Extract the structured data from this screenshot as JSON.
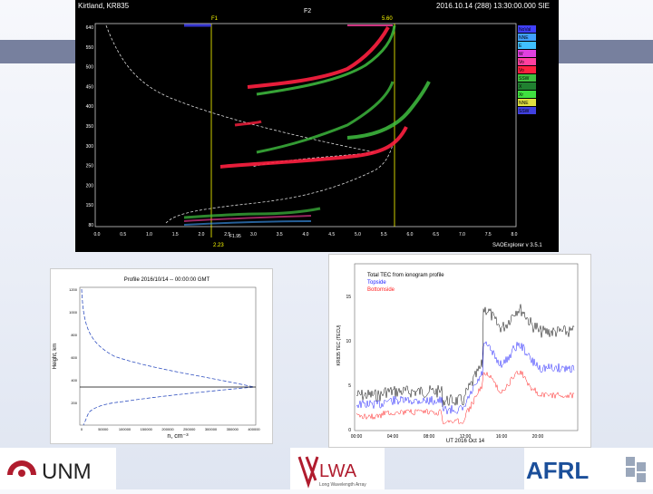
{
  "slide": {
    "colors": {
      "band": "#8d97c4",
      "band_side": "#77809e",
      "background": "#eef1f8"
    }
  },
  "ionogram": {
    "header_left": "Kirtland, KR835",
    "header_mid": "F2",
    "header_right": "2016.10.14 (288) 13:30:00.000 SIE",
    "footer_right": "SAOExplorer v 3.5.1",
    "marker_top_left": "F1",
    "marker_top_right": "5.60",
    "marker_bottom": "2.23",
    "marker_label": "F1.95",
    "y_ticks": [
      "640",
      "550",
      "500",
      "450",
      "400",
      "350",
      "300",
      "250",
      "200",
      "150",
      "80"
    ],
    "x_ticks": [
      "0.0",
      "0.5",
      "1.0",
      "1.5",
      "2.0",
      "2.5",
      "3.0",
      "3.5",
      "4.0",
      "4.5",
      "5.0",
      "5.5",
      "6.0",
      "6.5",
      "7.0",
      "7.5",
      "8.0"
    ],
    "legend": [
      {
        "label": "NoVal",
        "color": "#4040ff"
      },
      {
        "label": "NNE",
        "color": "#40a0ff"
      },
      {
        "label": "E",
        "color": "#40c0ff"
      },
      {
        "label": "W",
        "color": "#e040e0"
      },
      {
        "label": "Vo",
        "color": "#ff40a0"
      },
      {
        "label": "Vo",
        "color": "#ff2040"
      },
      {
        "label": "SSW",
        "color": "#40c040"
      },
      {
        "label": "X",
        "color": "#208030"
      },
      {
        "label": "Xr",
        "color": "#40e040"
      },
      {
        "label": "NNE",
        "color": "#e0e040"
      },
      {
        "label": "SSW",
        "color": "#4040e0"
      }
    ]
  },
  "profile": {
    "title": "Profile 2016/10/14 -- 00:00:00 GMT",
    "ylabel": "Height, km",
    "xlabel": "n, cm⁻³",
    "y_ticks": [
      "1200",
      "1000",
      "800",
      "600",
      "400",
      "200"
    ],
    "x_ticks": [
      "0",
      "50000",
      "100000",
      "150000",
      "200000",
      "250000",
      "300000",
      "350000",
      "400000"
    ]
  },
  "tec": {
    "legend_title": "Total TEC from ionogram profile",
    "legend_topside": "Topside",
    "legend_bottomside": "Bottomside",
    "ylabel": "KR835 TEC (TECU)",
    "xlabel": "UT 2016 Oct 14",
    "y_ticks": [
      "15",
      "10",
      "5",
      "0"
    ],
    "x_ticks": [
      "00:00",
      "04:00",
      "08:00",
      "12:00",
      "16:00",
      "20:00"
    ],
    "colors": {
      "total": "#000000",
      "topside": "#2020ff",
      "bottomside": "#ff2020"
    }
  },
  "logos": {
    "unm": "UNM",
    "lwa": "LWA",
    "lwa_sub": "Long Wavelength Array",
    "afrl": "AFRL"
  }
}
